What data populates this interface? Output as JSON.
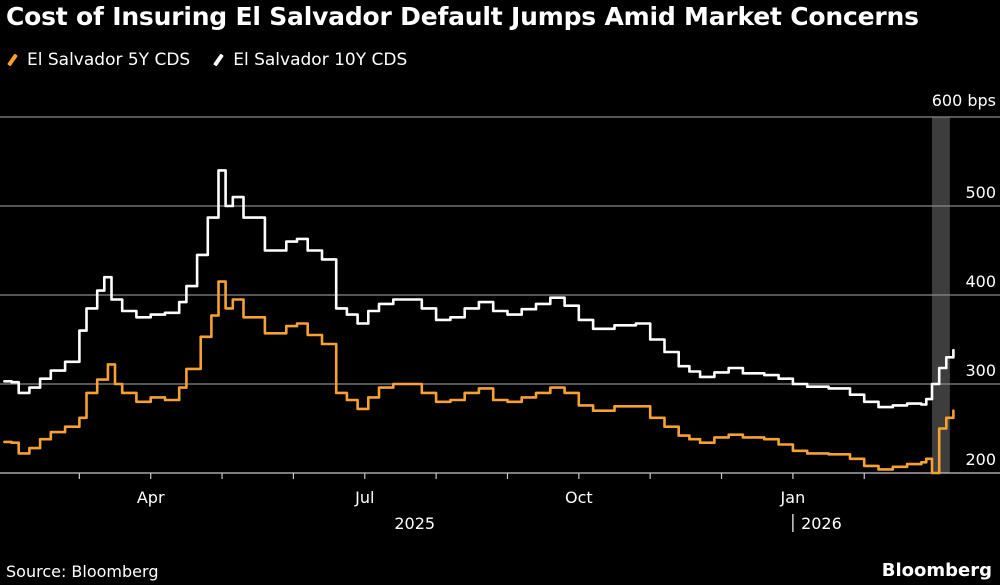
{
  "header": {
    "title": "Cost of Insuring El Salvador Default Jumps Amid Market Concerns"
  },
  "footer": {
    "source": "Source: Bloomberg",
    "brand": "Bloomberg"
  },
  "colors": {
    "background": "#000000",
    "series_5y": "#f7a132",
    "series_10y": "#ffffff",
    "grid": "#8a8a8a",
    "highlight_band": "#3d3d3d"
  },
  "chart_data": {
    "type": "line",
    "title": "Cost of Insuring El Salvador Default Jumps Amid Market Concerns",
    "xlabel": "",
    "ylabel": "bps",
    "ylim": [
      200,
      600
    ],
    "xlim": [
      0,
      13.3
    ],
    "x_unit": "months since Feb 1, 2025",
    "y_ticks": [
      {
        "value": 200,
        "label": "200"
      },
      {
        "value": 300,
        "label": "300"
      },
      {
        "value": 400,
        "label": "400"
      },
      {
        "value": 500,
        "label": "500"
      },
      {
        "value": 600,
        "label": "600 bps"
      }
    ],
    "x_month_ticks": [
      1,
      2,
      3,
      4,
      5,
      6,
      7,
      8,
      9,
      10,
      11,
      12
    ],
    "x_labels": [
      {
        "x": 2,
        "label": "Apr"
      },
      {
        "x": 5,
        "label": "Jul"
      },
      {
        "x": 8,
        "label": "Oct"
      },
      {
        "x": 11,
        "label": "Jan"
      }
    ],
    "year_labels": [
      {
        "x": 5.7,
        "label": "2025"
      },
      {
        "x": 11.4,
        "label": "2026"
      }
    ],
    "year_divider_x": 11.0,
    "highlight_band": [
      12.95,
      13.2
    ],
    "grid": true,
    "legend_position": "top-left",
    "series": [
      {
        "name": "El Salvador 5Y CDS",
        "points": [
          [
            -0.05,
            235
          ],
          [
            0.05,
            234
          ],
          [
            0.15,
            222
          ],
          [
            0.3,
            228
          ],
          [
            0.45,
            238
          ],
          [
            0.6,
            246
          ],
          [
            0.8,
            252
          ],
          [
            1.0,
            262
          ],
          [
            1.1,
            290
          ],
          [
            1.25,
            305
          ],
          [
            1.4,
            322
          ],
          [
            1.5,
            300
          ],
          [
            1.6,
            290
          ],
          [
            1.8,
            280
          ],
          [
            2.0,
            285
          ],
          [
            2.2,
            282
          ],
          [
            2.4,
            296
          ],
          [
            2.5,
            317
          ],
          [
            2.7,
            353
          ],
          [
            2.85,
            377
          ],
          [
            2.95,
            415
          ],
          [
            3.05,
            385
          ],
          [
            3.15,
            395
          ],
          [
            3.3,
            375
          ],
          [
            3.6,
            357
          ],
          [
            3.9,
            365
          ],
          [
            4.05,
            368
          ],
          [
            4.2,
            355
          ],
          [
            4.4,
            345
          ],
          [
            4.6,
            290
          ],
          [
            4.75,
            282
          ],
          [
            4.9,
            272
          ],
          [
            5.05,
            285
          ],
          [
            5.2,
            296
          ],
          [
            5.4,
            300
          ],
          [
            5.6,
            300
          ],
          [
            5.8,
            290
          ],
          [
            6.0,
            280
          ],
          [
            6.2,
            282
          ],
          [
            6.4,
            290
          ],
          [
            6.6,
            295
          ],
          [
            6.8,
            282
          ],
          [
            7.0,
            280
          ],
          [
            7.2,
            285
          ],
          [
            7.4,
            290
          ],
          [
            7.6,
            296
          ],
          [
            7.8,
            290
          ],
          [
            8.0,
            276
          ],
          [
            8.2,
            270
          ],
          [
            8.5,
            275
          ],
          [
            8.8,
            275
          ],
          [
            9.0,
            262
          ],
          [
            9.2,
            252
          ],
          [
            9.4,
            242
          ],
          [
            9.55,
            238
          ],
          [
            9.7,
            234
          ],
          [
            9.9,
            240
          ],
          [
            10.1,
            243
          ],
          [
            10.3,
            240
          ],
          [
            10.6,
            238
          ],
          [
            10.8,
            232
          ],
          [
            11.0,
            225
          ],
          [
            11.2,
            222
          ],
          [
            11.5,
            221
          ],
          [
            11.8,
            216
          ],
          [
            12.0,
            208
          ],
          [
            12.2,
            204
          ],
          [
            12.4,
            207
          ],
          [
            12.6,
            210
          ],
          [
            12.8,
            212
          ],
          [
            12.87,
            216
          ],
          [
            12.95,
            200
          ],
          [
            13.05,
            250
          ],
          [
            13.15,
            262
          ],
          [
            13.25,
            270
          ]
        ]
      },
      {
        "name": "El Salvador 10Y CDS",
        "points": [
          [
            -0.05,
            303
          ],
          [
            0.05,
            302
          ],
          [
            0.15,
            290
          ],
          [
            0.3,
            296
          ],
          [
            0.45,
            306
          ],
          [
            0.6,
            315
          ],
          [
            0.8,
            325
          ],
          [
            1.0,
            360
          ],
          [
            1.1,
            385
          ],
          [
            1.25,
            405
          ],
          [
            1.35,
            420
          ],
          [
            1.45,
            395
          ],
          [
            1.6,
            382
          ],
          [
            1.8,
            375
          ],
          [
            2.0,
            378
          ],
          [
            2.2,
            380
          ],
          [
            2.4,
            392
          ],
          [
            2.5,
            410
          ],
          [
            2.65,
            445
          ],
          [
            2.8,
            487
          ],
          [
            2.95,
            540
          ],
          [
            3.05,
            500
          ],
          [
            3.15,
            510
          ],
          [
            3.3,
            487
          ],
          [
            3.6,
            450
          ],
          [
            3.9,
            460
          ],
          [
            4.05,
            463
          ],
          [
            4.2,
            450
          ],
          [
            4.4,
            440
          ],
          [
            4.6,
            385
          ],
          [
            4.75,
            378
          ],
          [
            4.9,
            368
          ],
          [
            5.05,
            382
          ],
          [
            5.2,
            390
          ],
          [
            5.4,
            395
          ],
          [
            5.6,
            395
          ],
          [
            5.8,
            385
          ],
          [
            6.0,
            372
          ],
          [
            6.2,
            375
          ],
          [
            6.4,
            385
          ],
          [
            6.6,
            392
          ],
          [
            6.8,
            382
          ],
          [
            7.0,
            378
          ],
          [
            7.2,
            384
          ],
          [
            7.4,
            390
          ],
          [
            7.6,
            397
          ],
          [
            7.8,
            388
          ],
          [
            8.0,
            372
          ],
          [
            8.2,
            362
          ],
          [
            8.5,
            366
          ],
          [
            8.8,
            368
          ],
          [
            9.0,
            350
          ],
          [
            9.2,
            336
          ],
          [
            9.4,
            320
          ],
          [
            9.55,
            314
          ],
          [
            9.7,
            308
          ],
          [
            9.9,
            313
          ],
          [
            10.1,
            318
          ],
          [
            10.3,
            312
          ],
          [
            10.6,
            310
          ],
          [
            10.8,
            306
          ],
          [
            11.0,
            300
          ],
          [
            11.2,
            297
          ],
          [
            11.5,
            295
          ],
          [
            11.8,
            288
          ],
          [
            12.0,
            280
          ],
          [
            12.2,
            274
          ],
          [
            12.4,
            276
          ],
          [
            12.6,
            278
          ],
          [
            12.8,
            277
          ],
          [
            12.87,
            283
          ],
          [
            12.95,
            300
          ],
          [
            13.05,
            318
          ],
          [
            13.15,
            330
          ],
          [
            13.25,
            338
          ]
        ]
      }
    ]
  }
}
